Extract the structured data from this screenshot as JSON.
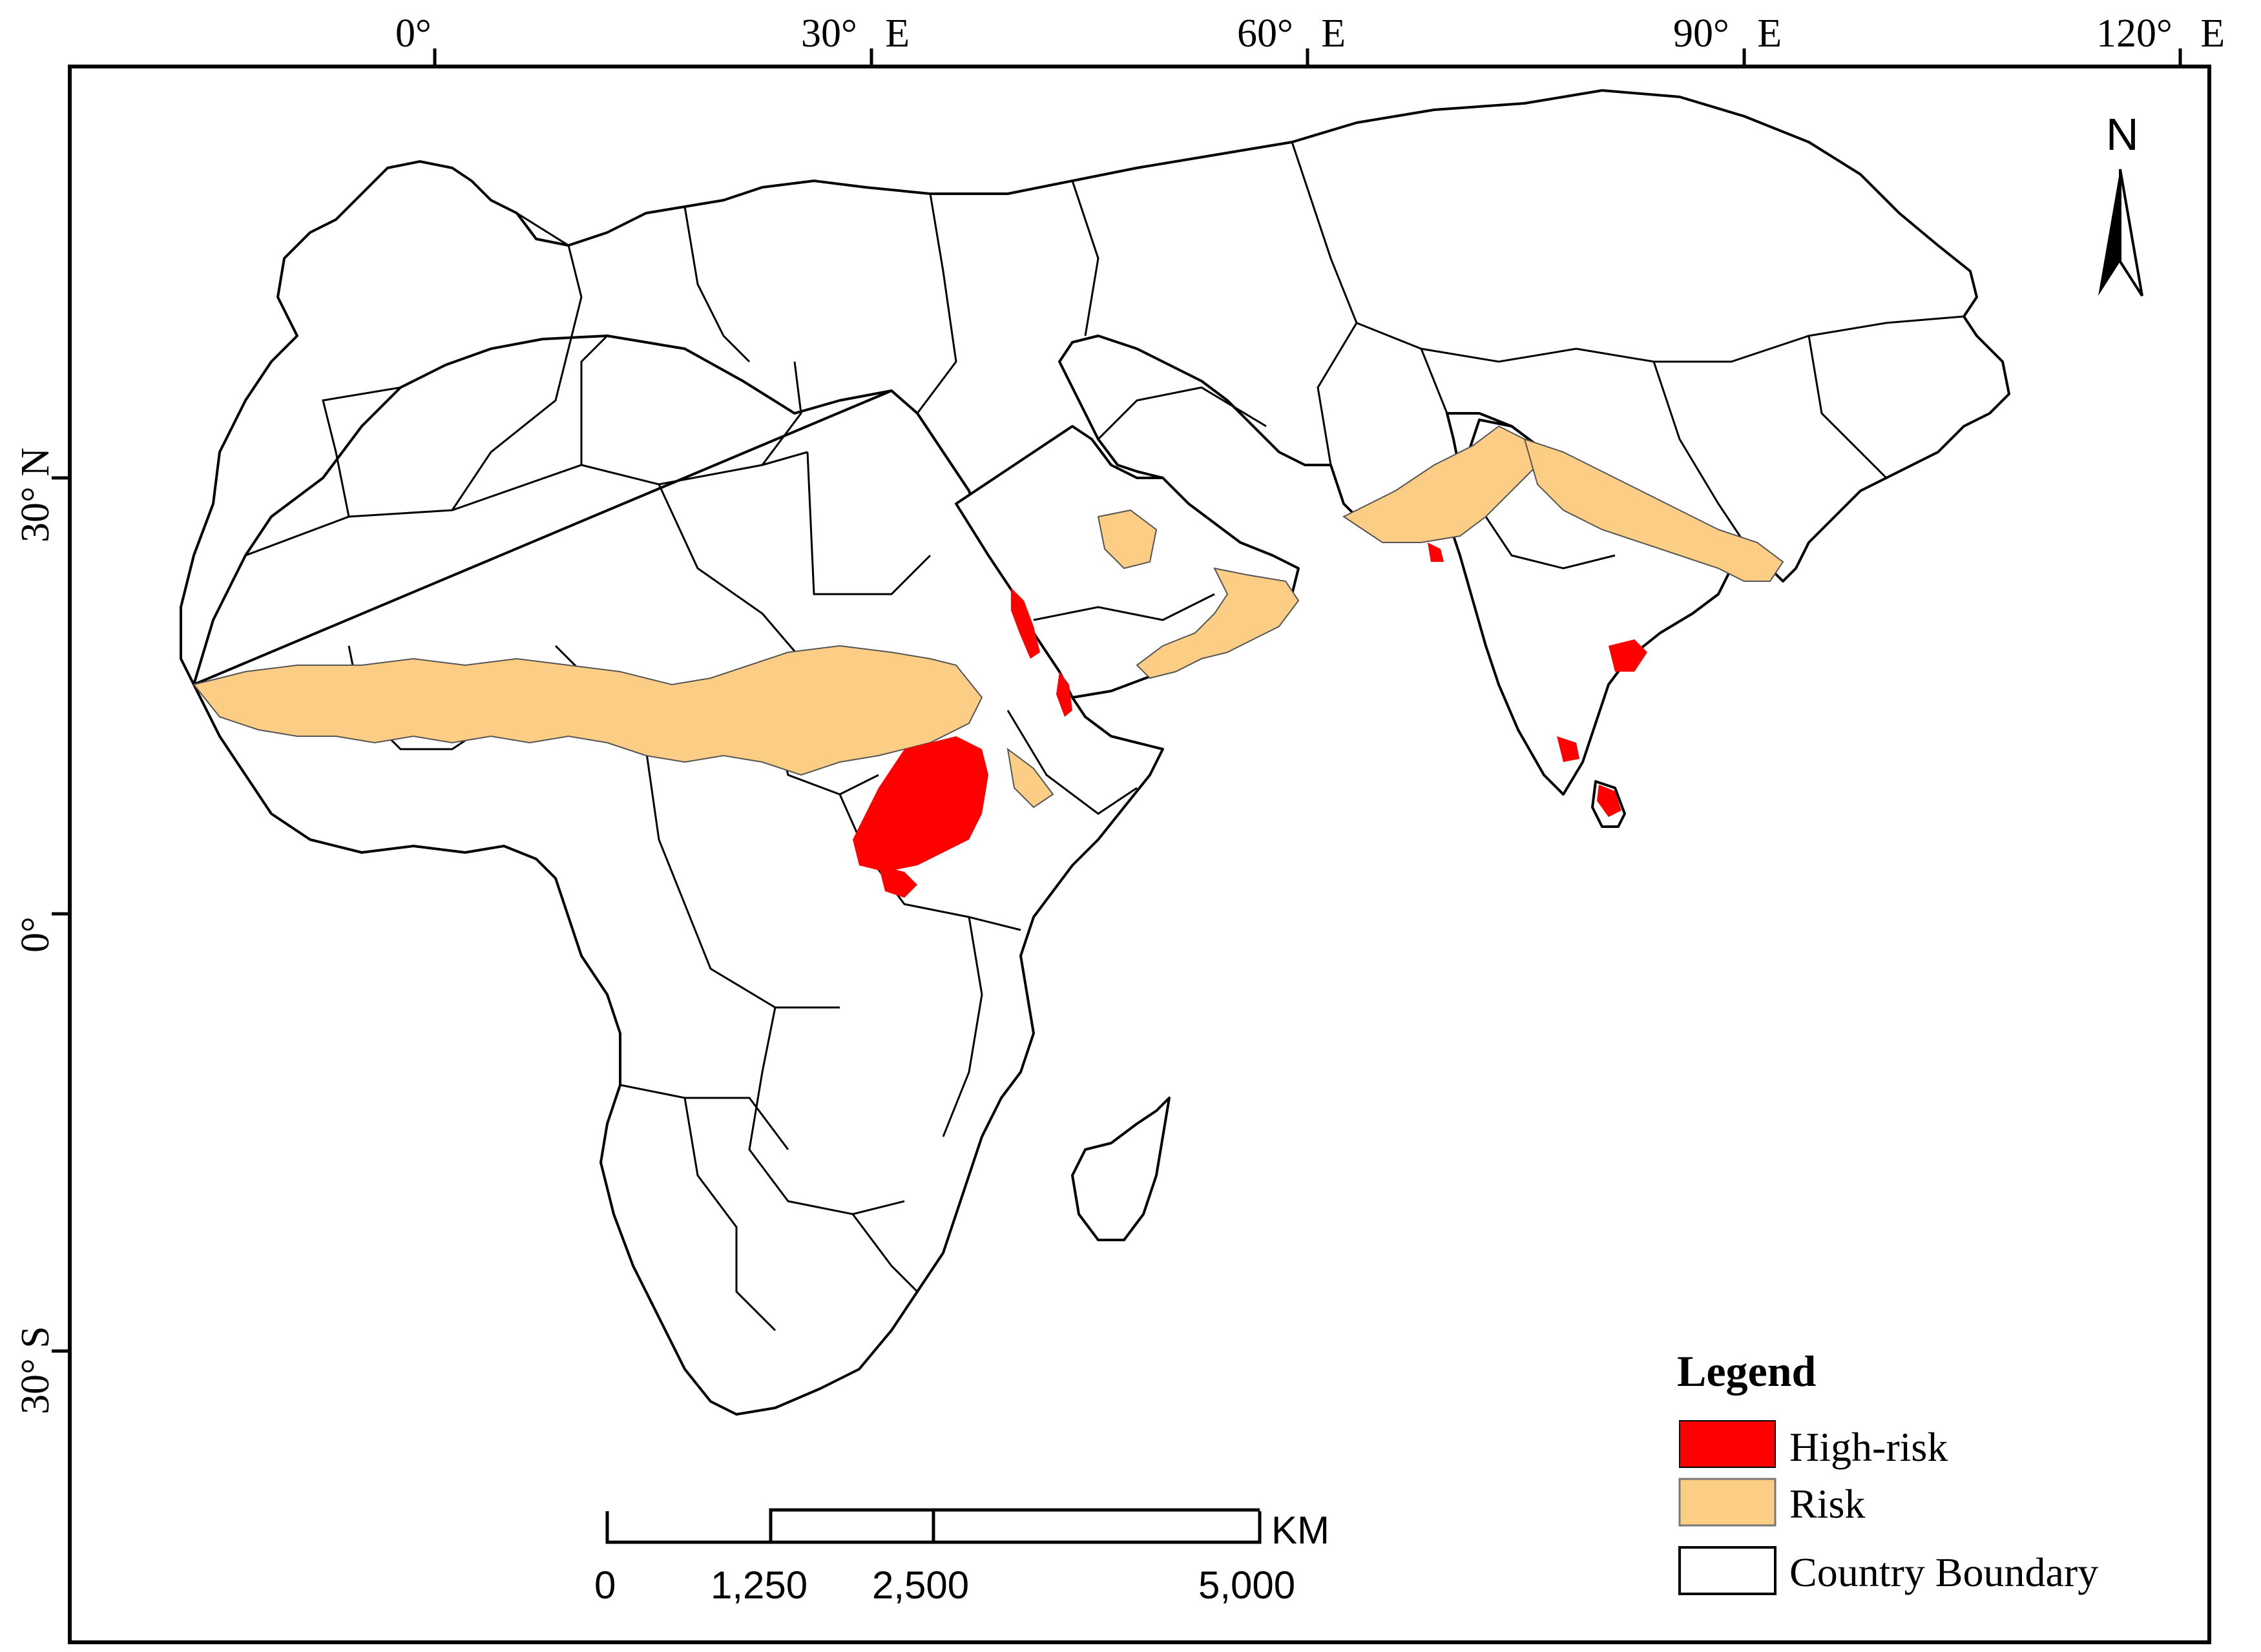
{
  "map": {
    "top_axis": [
      "0°",
      "30° E",
      "60° E",
      "90° E",
      "120° E"
    ],
    "left_axis": [
      "30° N",
      "0°",
      "30° S"
    ],
    "north_arrow": {
      "label": "N",
      "icon": "north-arrow-icon"
    },
    "scale_bar": {
      "unit": "KM",
      "ticks": [
        "0",
        "1,250",
        "2,500",
        "5,000"
      ]
    },
    "legend": {
      "title": "Legend",
      "items": [
        {
          "label": "High-risk",
          "color": "#FF0000"
        },
        {
          "label": "Risk",
          "color": "#FBCD85"
        },
        {
          "label": "Country Boundary",
          "color": "#FFFFFF"
        }
      ]
    }
  }
}
